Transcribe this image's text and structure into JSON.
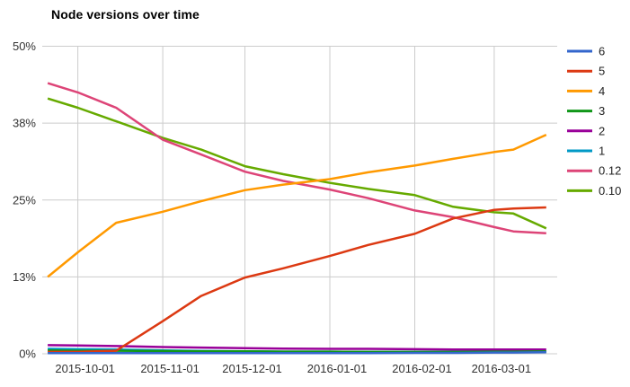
{
  "chart_data": {
    "type": "line",
    "title": "Node versions over time",
    "xlabel": "",
    "ylabel": "",
    "ylim": [
      0,
      50
    ],
    "grid": true,
    "legend_position": "right",
    "y_tick_values": [
      0,
      12.5,
      25,
      37.5,
      50
    ],
    "y_tick_labels": [
      "0%",
      "13%",
      "25%",
      "38%",
      "50%"
    ],
    "x_tick_labels": [
      "2015-10-01",
      "2015-11-01",
      "2015-12-01",
      "2016-01-01",
      "2016-02-01",
      "2016-03-01"
    ],
    "x_domain": [
      "2015-09-18",
      "2016-03-24"
    ],
    "x": [
      "2015-09-20",
      "2015-10-01",
      "2015-10-15",
      "2015-11-01",
      "2015-11-15",
      "2015-12-01",
      "2015-12-15",
      "2016-01-01",
      "2016-01-15",
      "2016-02-01",
      "2016-02-15",
      "2016-03-01",
      "2016-03-08",
      "2016-03-20"
    ],
    "series": [
      {
        "name": "6",
        "color": "#3366cc",
        "values": [
          0.1,
          0.1,
          0.1,
          0.1,
          0.1,
          0.1,
          0.1,
          0.1,
          0.1,
          0.15,
          0.15,
          0.2,
          0.2,
          0.25
        ]
      },
      {
        "name": "5",
        "color": "#dc3912",
        "values": [
          0.3,
          0.3,
          0.5,
          5.3,
          9.4,
          12.4,
          13.9,
          15.9,
          17.7,
          19.5,
          22.0,
          23.4,
          23.6,
          23.8
        ]
      },
      {
        "name": "4",
        "color": "#ff9900",
        "values": [
          12.5,
          16.5,
          21.3,
          23.1,
          24.8,
          26.6,
          27.5,
          28.4,
          29.5,
          30.6,
          31.7,
          32.8,
          33.2,
          35.6
        ]
      },
      {
        "name": "3",
        "color": "#109618",
        "values": [
          0.55,
          0.5,
          0.5,
          0.45,
          0.4,
          0.4,
          0.35,
          0.35,
          0.3,
          0.3,
          0.3,
          0.35,
          0.35,
          0.4
        ]
      },
      {
        "name": "2",
        "color": "#990099",
        "values": [
          1.4,
          1.35,
          1.25,
          1.1,
          1.0,
          0.9,
          0.85,
          0.8,
          0.8,
          0.75,
          0.7,
          0.7,
          0.7,
          0.7
        ]
      },
      {
        "name": "1",
        "color": "#0099c6",
        "values": [
          0.8,
          0.75,
          0.7,
          0.55,
          0.45,
          0.4,
          0.35,
          0.35,
          0.3,
          0.3,
          0.3,
          0.3,
          0.3,
          0.3
        ]
      },
      {
        "name": "0.12",
        "color": "#dd4477",
        "values": [
          44.0,
          42.5,
          40.0,
          34.8,
          32.4,
          29.6,
          28.1,
          26.7,
          25.3,
          23.3,
          22.2,
          20.6,
          19.9,
          19.6
        ]
      },
      {
        "name": "0.10",
        "color": "#66aa00",
        "values": [
          41.5,
          40.0,
          37.8,
          35.1,
          33.2,
          30.5,
          29.2,
          27.8,
          26.8,
          25.8,
          23.9,
          23.0,
          22.8,
          20.4
        ]
      }
    ],
    "style": {
      "gridline_color": "#cccccc",
      "axis_text_color": "#333333",
      "legend_text_color": "#222222",
      "background": "#ffffff"
    }
  }
}
